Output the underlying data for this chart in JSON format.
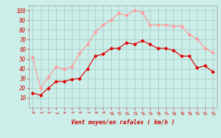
{
  "mean_wind": [
    15,
    13,
    20,
    27,
    27,
    29,
    30,
    40,
    53,
    55,
    61,
    61,
    67,
    65,
    69,
    65,
    61,
    61,
    59,
    53,
    53,
    41,
    43,
    37
  ],
  "gusts": [
    52,
    20,
    31,
    42,
    40,
    42,
    56,
    65,
    78,
    85,
    90,
    97,
    95,
    100,
    98,
    85,
    85,
    85,
    84,
    84,
    75,
    71,
    61,
    57
  ],
  "x": [
    0,
    1,
    2,
    3,
    4,
    5,
    6,
    7,
    8,
    9,
    10,
    11,
    12,
    13,
    14,
    15,
    16,
    17,
    18,
    19,
    20,
    21,
    22,
    23
  ],
  "xlim": [
    -0.5,
    23.5
  ],
  "ylim": [
    0,
    105
  ],
  "yticks": [
    10,
    20,
    30,
    40,
    50,
    60,
    70,
    80,
    90,
    100
  ],
  "xticks": [
    0,
    1,
    2,
    3,
    4,
    5,
    6,
    7,
    8,
    9,
    10,
    11,
    12,
    13,
    14,
    15,
    16,
    17,
    18,
    19,
    20,
    21,
    22,
    23
  ],
  "xlabel": "Vent moyen/en rafales ( km/h )",
  "mean_color": "#dd0000",
  "gust_color": "#ff9999",
  "bg_color": "#cceee8",
  "grid_color": "#aacccc",
  "text_color": "#cc0000",
  "tick_color": "#cc0000",
  "marker": "D",
  "marker_size": 2.0,
  "line_width": 0.9,
  "xlabel_fontsize": 6.0,
  "ytick_fontsize": 5.5,
  "xtick_fontsize": 4.5
}
